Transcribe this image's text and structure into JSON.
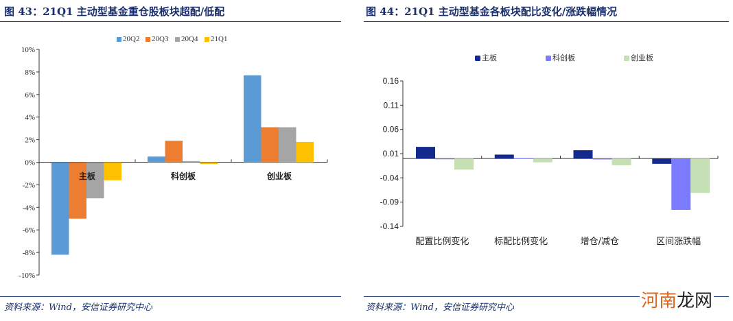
{
  "left": {
    "title": "图 43：21Q1 主动型基金重仓股板块超配/低配",
    "source": "资料来源：Wind，安信证券研究中心"
  },
  "right": {
    "title": "图 44：21Q1 主动型基金各板块配比变化/涨跌幅情况",
    "source": "资料来源：Wind，安信证券研究中心"
  },
  "watermark": {
    "part1": "河南",
    "part2": "龙网"
  },
  "chart_data": [
    {
      "type": "bar",
      "categories": [
        "主板",
        "科创板",
        "创业板"
      ],
      "series": [
        {
          "name": "20Q2",
          "color": "#5b9bd5",
          "values": [
            -8.2,
            0.5,
            7.7
          ]
        },
        {
          "name": "20Q3",
          "color": "#ed7d31",
          "values": [
            -5.0,
            1.9,
            3.1
          ]
        },
        {
          "name": "20Q4",
          "color": "#a5a5a5",
          "values": [
            -3.2,
            0.1,
            3.1
          ]
        },
        {
          "name": "21Q1",
          "color": "#ffc000",
          "values": [
            -1.6,
            -0.15,
            1.8
          ]
        }
      ],
      "yticks": [
        "10%",
        "8%",
        "6%",
        "4%",
        "2%",
        "0%",
        "-2%",
        "-4%",
        "-6%",
        "-8%",
        "-10%"
      ],
      "ylim": [
        -10,
        10
      ],
      "yunit": "%",
      "legend": "top",
      "grid": false
    },
    {
      "type": "bar",
      "categories": [
        "配置比例变化",
        "标配比例变化",
        "增仓/减仓",
        "区间涨跌幅"
      ],
      "series": [
        {
          "name": "主板",
          "color": "#132a8c",
          "values": [
            0.024,
            0.008,
            0.017,
            -0.011
          ]
        },
        {
          "name": "科创板",
          "color": "#7b7bff",
          "values": [
            -0.001,
            0.001,
            -0.002,
            -0.106
          ]
        },
        {
          "name": "创业板",
          "color": "#c5e0b4",
          "values": [
            -0.023,
            -0.008,
            -0.014,
            -0.071
          ]
        }
      ],
      "yticks": [
        "0.16",
        "0.11",
        "0.06",
        "0.01",
        "-0.04",
        "-0.09",
        "-0.14"
      ],
      "ylim": [
        -0.14,
        0.16
      ],
      "legend": "top",
      "grid": false
    }
  ]
}
